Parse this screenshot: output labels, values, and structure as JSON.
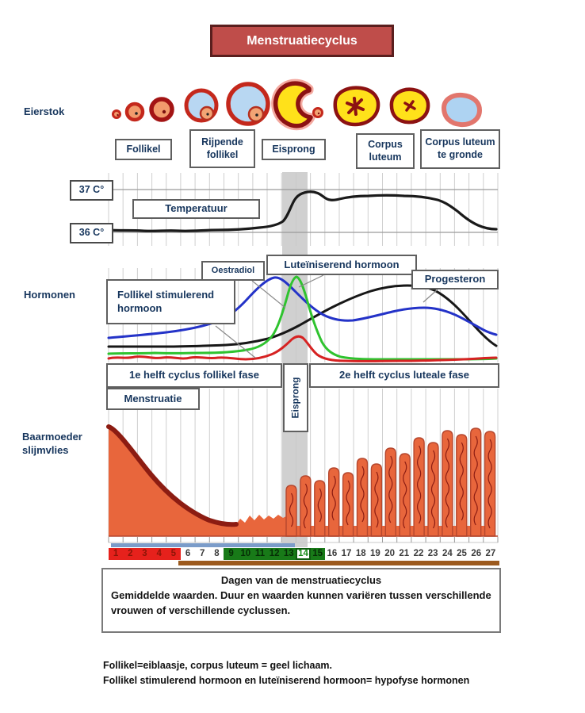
{
  "title": "Menstruatiecyclus",
  "row_labels": {
    "ovary": "Eierstok",
    "hormones": "Hormonen",
    "lining": "Baarmoeder slijmvlies"
  },
  "ovary_stages": [
    {
      "label": "Follikel"
    },
    {
      "label": "Rijpende follikel"
    },
    {
      "label": "Eisprong"
    },
    {
      "label": "Corpus luteum"
    },
    {
      "label": "Corpus luteum te gronde"
    }
  ],
  "temperature": {
    "label": "Temperatuur",
    "high_tick": "37 C°",
    "low_tick": "36 C°",
    "line_color": "#1a1a1a"
  },
  "hormones": {
    "fsh": {
      "label": "Follikel stimulerend hormoon",
      "color": "#d62222"
    },
    "oestradiol": {
      "label": "Oestradiol",
      "color": "#2433c8"
    },
    "lh": {
      "label": "Luteïniserend hormoon",
      "color": "#2fc32f"
    },
    "progesteron": {
      "label": "Progesteron",
      "color": "#171717"
    }
  },
  "phases": {
    "first_half": "1e helft cyclus follikel fase",
    "second_half": "2e helft cyclus luteale fase",
    "menstruation": "Menstruatie",
    "ovulation": "Eisprong"
  },
  "day_axis": {
    "days": [
      {
        "n": "1",
        "style": "menses"
      },
      {
        "n": "2",
        "style": "menses"
      },
      {
        "n": "3",
        "style": "menses"
      },
      {
        "n": "4",
        "style": "menses"
      },
      {
        "n": "5",
        "style": "menses"
      },
      {
        "n": "6",
        "style": "plain"
      },
      {
        "n": "7",
        "style": "plain"
      },
      {
        "n": "8",
        "style": "plain"
      },
      {
        "n": "9",
        "style": "fertile"
      },
      {
        "n": "10",
        "style": "fertile"
      },
      {
        "n": "11",
        "style": "fertile"
      },
      {
        "n": "12",
        "style": "fertile"
      },
      {
        "n": "13",
        "style": "fertile"
      },
      {
        "n": "14",
        "style": "ovul"
      },
      {
        "n": "15",
        "style": "fertile"
      },
      {
        "n": "16",
        "style": "plain"
      },
      {
        "n": "17",
        "style": "plain"
      },
      {
        "n": "18",
        "style": "plain"
      },
      {
        "n": "19",
        "style": "plain"
      },
      {
        "n": "20",
        "style": "plain"
      },
      {
        "n": "21",
        "style": "plain"
      },
      {
        "n": "22",
        "style": "plain"
      },
      {
        "n": "23",
        "style": "plain"
      },
      {
        "n": "24",
        "style": "plain"
      },
      {
        "n": "25",
        "style": "plain"
      },
      {
        "n": "26",
        "style": "plain"
      },
      {
        "n": "27",
        "style": "plain"
      }
    ]
  },
  "caption": {
    "heading": "Dagen van de menstruatiecyclus",
    "body": "Gemiddelde waarden. Duur en waarden kunnen variëren tussen verschillende vrouwen of verschillende cyclussen."
  },
  "footnotes": {
    "line1": "Follikel=eiblaasje, corpus luteum = geel lichaam.",
    "line2": "Follikel stimulerend hormoon en luteïniserend hormoon= hypofyse hormonen"
  },
  "colors": {
    "title_bg": "#bf4d4a",
    "title_border": "#5a1f1e",
    "lining_fill": "#e8663c",
    "lining_edge": "#8c1c12",
    "menses_red_bg": "#e6211c",
    "menses_red_text": "#8b1507",
    "fertile_green_bg": "#187a18",
    "ovulation_day_text": "#178a17",
    "ovulation_band": "#c8c8c8",
    "blue_bar": "#7b9cc9",
    "brown_bar": "#9c5a1e"
  }
}
